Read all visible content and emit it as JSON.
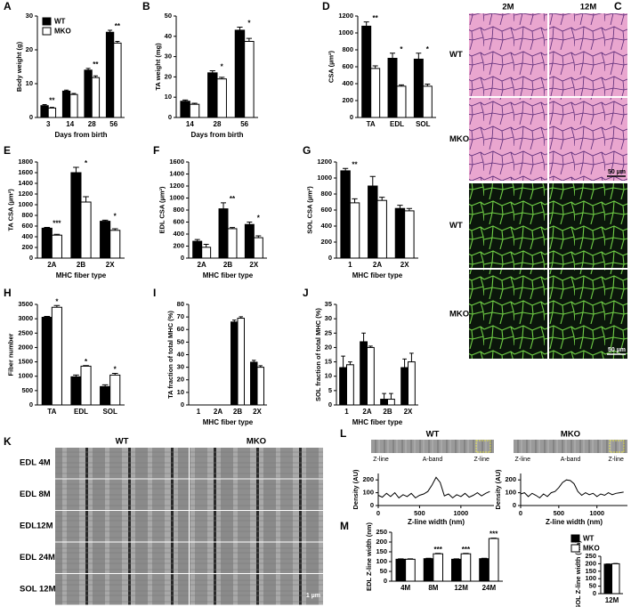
{
  "chart_data": [
    {
      "panel": "A",
      "type": "bar",
      "ylabel": "Body weight (g)",
      "xlabel": "Days from birth",
      "categories": [
        "3",
        "14",
        "28",
        "56"
      ],
      "series": [
        {
          "name": "WT",
          "color": "#000000",
          "values": [
            3.5,
            7.8,
            14,
            25.2
          ],
          "errors": [
            0.3,
            0.3,
            0.5,
            0.6
          ]
        },
        {
          "name": "MKO",
          "color": "#ffffff",
          "values": [
            2.8,
            6.8,
            11.8,
            22
          ],
          "errors": [
            0.2,
            0.3,
            0.5,
            0.5
          ]
        }
      ],
      "annotations": [
        "**",
        null,
        "**",
        "**"
      ],
      "ylim": [
        0,
        30
      ],
      "yticks": [
        0,
        10,
        20,
        30
      ],
      "legend": "upper left"
    },
    {
      "panel": "B",
      "type": "bar",
      "ylabel": "TA weight (mg)",
      "xlabel": "Days from birth",
      "categories": [
        "14",
        "28",
        "56"
      ],
      "series": [
        {
          "color": "#000000",
          "values": [
            8,
            22,
            43
          ],
          "errors": [
            0.6,
            1,
            1.5
          ]
        },
        {
          "color": "#ffffff",
          "values": [
            6.5,
            19,
            37.5
          ],
          "errors": [
            0.5,
            0.8,
            1.5
          ]
        }
      ],
      "annotations": [
        null,
        "*",
        "*"
      ],
      "ylim": [
        0,
        50
      ],
      "yticks": [
        0,
        10,
        20,
        30,
        40,
        50
      ]
    },
    {
      "panel": "D",
      "type": "bar",
      "ylabel": "CSA (µm²)",
      "categories": [
        "TA",
        "EDL",
        "SOL"
      ],
      "series": [
        {
          "color": "#000000",
          "values": [
            1080,
            700,
            690
          ],
          "errors": [
            50,
            60,
            70
          ]
        },
        {
          "color": "#ffffff",
          "values": [
            580,
            370,
            370
          ],
          "errors": [
            30,
            15,
            25
          ]
        }
      ],
      "annotations": [
        "**",
        "*",
        "*"
      ],
      "ylim": [
        0,
        1200
      ],
      "yticks": [
        0,
        200,
        400,
        600,
        800,
        1000,
        1200
      ]
    },
    {
      "panel": "E",
      "type": "bar",
      "ylabel": "TA CSA (µm²)",
      "xlabel": "MHC fiber type",
      "categories": [
        "2A",
        "2B",
        "2X"
      ],
      "series": [
        {
          "color": "#000000",
          "values": [
            560,
            1600,
            690
          ],
          "errors": [
            15,
            100,
            20
          ]
        },
        {
          "color": "#ffffff",
          "values": [
            430,
            1050,
            520
          ],
          "errors": [
            15,
            100,
            30
          ]
        }
      ],
      "annotations": [
        "***",
        "*",
        "*"
      ],
      "ylim": [
        0,
        1800
      ],
      "yticks": [
        0,
        200,
        400,
        600,
        800,
        1000,
        1200,
        1400,
        1600,
        1800
      ]
    },
    {
      "panel": "F",
      "type": "bar",
      "ylabel": "EDL CSA (µm²)",
      "xlabel": "MHC fiber type",
      "categories": [
        "2A",
        "2B",
        "2X"
      ],
      "series": [
        {
          "color": "#000000",
          "values": [
            280,
            820,
            560
          ],
          "errors": [
            30,
            100,
            40
          ]
        },
        {
          "color": "#ffffff",
          "values": [
            180,
            490,
            340
          ],
          "errors": [
            50,
            20,
            30
          ]
        }
      ],
      "annotations": [
        null,
        "**",
        "*"
      ],
      "ylim": [
        0,
        1600
      ],
      "yticks": [
        0,
        200,
        400,
        600,
        800,
        1000,
        1200,
        1400,
        1600
      ]
    },
    {
      "panel": "G",
      "type": "bar",
      "ylabel": "SOL CSA (µm²)",
      "xlabel": "MHC fiber type",
      "categories": [
        "1",
        "2A",
        "2X"
      ],
      "series": [
        {
          "color": "#000000",
          "values": [
            1090,
            900,
            620
          ],
          "errors": [
            30,
            120,
            40
          ]
        },
        {
          "color": "#ffffff",
          "values": [
            690,
            720,
            590
          ],
          "errors": [
            50,
            40,
            30
          ]
        }
      ],
      "annotations": [
        "**",
        null,
        null
      ],
      "ylim": [
        0,
        1200
      ],
      "yticks": [
        0,
        200,
        400,
        600,
        800,
        1000,
        1200
      ]
    },
    {
      "panel": "H",
      "type": "bar",
      "ylabel": "Fiber number",
      "categories": [
        "TA",
        "EDL",
        "SOL"
      ],
      "series": [
        {
          "color": "#000000",
          "values": [
            3050,
            980,
            640
          ],
          "errors": [
            30,
            60,
            60
          ]
        },
        {
          "color": "#ffffff",
          "values": [
            3400,
            1350,
            1040
          ],
          "errors": [
            60,
            20,
            60
          ]
        }
      ],
      "annotations": [
        "*",
        "*",
        "*"
      ],
      "ylim": [
        0,
        3500
      ],
      "yticks": [
        0,
        500,
        1000,
        1500,
        2000,
        2500,
        3000,
        3500
      ]
    },
    {
      "panel": "I",
      "type": "bar",
      "ylabel": "TA fraction of total MHC (%)",
      "xlabel": "MHC fiber type",
      "categories": [
        "1",
        "2A",
        "2B",
        "2X"
      ],
      "series": [
        {
          "color": "#000000",
          "values": [
            0,
            0,
            66,
            34
          ],
          "errors": [
            0,
            0,
            1.5,
            1.5
          ]
        },
        {
          "color": "#ffffff",
          "values": [
            0,
            0,
            69,
            30
          ],
          "errors": [
            0,
            0,
            1.2,
            1.2
          ]
        }
      ],
      "ylim": [
        0,
        80
      ],
      "yticks": [
        0,
        10,
        20,
        30,
        40,
        50,
        60,
        70,
        80
      ]
    },
    {
      "panel": "J",
      "type": "bar",
      "ylabel": "SOL fraction of total MHC (%)",
      "xlabel": "MHC fiber type",
      "categories": [
        "1",
        "2A",
        "2B",
        "2X"
      ],
      "series": [
        {
          "color": "#000000",
          "values": [
            13,
            22,
            2,
            13
          ],
          "errors": [
            4,
            3,
            2,
            3
          ]
        },
        {
          "color": "#ffffff",
          "values": [
            14,
            20,
            2,
            15
          ],
          "errors": [
            1,
            0.5,
            2,
            3
          ]
        }
      ],
      "ylim": [
        0,
        35
      ],
      "yticks": [
        0,
        5,
        10,
        15,
        20,
        25,
        30,
        35
      ]
    },
    {
      "panel": "L",
      "type": "line",
      "title": "WT",
      "strip_labels": [
        "Z-line",
        "A-band",
        "Z-line"
      ],
      "ylabel": "Density (AU)",
      "xlabel": "Z-line width (nm)",
      "x": [
        0,
        50,
        100,
        150,
        200,
        250,
        300,
        350,
        400,
        450,
        500,
        550,
        600,
        650,
        700,
        750,
        800,
        850,
        900,
        950,
        1000,
        1050,
        1100,
        1150,
        1200,
        1250,
        1300,
        1350
      ],
      "series": [
        {
          "color": "#000000",
          "values": [
            80,
            65,
            95,
            70,
            100,
            60,
            85,
            70,
            95,
            60,
            80,
            90,
            110,
            160,
            220,
            180,
            75,
            90,
            60,
            85,
            70,
            95,
            65,
            80,
            100,
            75,
            95,
            110
          ]
        }
      ],
      "xlim": [
        0,
        1400
      ],
      "xticks": [
        0,
        500,
        1000
      ],
      "ylim": [
        0,
        250
      ],
      "yticks": [
        0,
        100,
        200
      ]
    },
    {
      "type": "line",
      "title": "MKO",
      "strip_labels": [
        "Z-line",
        "A-band",
        "Z-line"
      ],
      "ylabel": "Density (AU)",
      "xlabel": "Z-line width (nm)",
      "x": [
        0,
        50,
        100,
        150,
        200,
        250,
        300,
        350,
        400,
        450,
        500,
        550,
        600,
        650,
        700,
        750,
        800,
        850,
        900,
        950,
        1000,
        1050,
        1100,
        1150,
        1200,
        1250,
        1300,
        1350
      ],
      "series": [
        {
          "color": "#000000",
          "values": [
            90,
            100,
            70,
            95,
            80,
            60,
            90,
            70,
            100,
            110,
            140,
            180,
            200,
            195,
            170,
            110,
            80,
            100,
            85,
            95,
            70,
            90,
            80,
            100,
            85,
            95,
            100,
            105
          ]
        }
      ],
      "xlim": [
        0,
        1400
      ],
      "xticks": [
        0,
        500,
        1000
      ],
      "ylim": [
        0,
        250
      ],
      "yticks": [
        0,
        100,
        200
      ]
    },
    {
      "panel": "M",
      "type": "bar",
      "ylabel": "EDL Z-line width (nm)",
      "categories": [
        "4M",
        "8M",
        "12M",
        "24M"
      ],
      "series": [
        {
          "color": "#000000",
          "values": [
            112,
            115,
            112,
            115
          ],
          "errors": [
            2,
            2,
            2,
            2
          ]
        },
        {
          "color": "#ffffff",
          "values": [
            112,
            140,
            140,
            218
          ],
          "errors": [
            2,
            2,
            2,
            2
          ]
        }
      ],
      "annotations": [
        null,
        "***",
        "***",
        "***"
      ],
      "ylim": [
        0,
        250
      ],
      "yticks": [
        0,
        50,
        100,
        150,
        200,
        250
      ]
    },
    {
      "type": "bar",
      "ylabel": "SOL Z-line width (nm)",
      "categories": [
        "12M"
      ],
      "series": [
        {
          "name": "WT",
          "color": "#000000",
          "values": [
            197
          ],
          "errors": [
            2
          ]
        },
        {
          "name": "MKO",
          "color": "#ffffff",
          "values": [
            200
          ],
          "errors": [
            2
          ]
        }
      ],
      "ylim": [
        0,
        250
      ],
      "yticks": [
        0,
        50,
        100,
        150,
        200,
        250
      ],
      "legend": "upper right"
    }
  ],
  "histology": {
    "panel": "C",
    "columns": [
      "2M",
      "12M"
    ],
    "rows": [
      "WT",
      "MKO",
      "WT",
      "MKO"
    ],
    "scale_bars": [
      "50 µm",
      "50 µm"
    ]
  },
  "electron_microscopy": {
    "panel": "K",
    "columns": [
      "WT",
      "MKO"
    ],
    "rows": [
      "EDL 4M",
      "EDL 8M",
      "EDL12M",
      "EDL 24M",
      "SOL 12M"
    ],
    "scale_bar": "1 µm"
  }
}
